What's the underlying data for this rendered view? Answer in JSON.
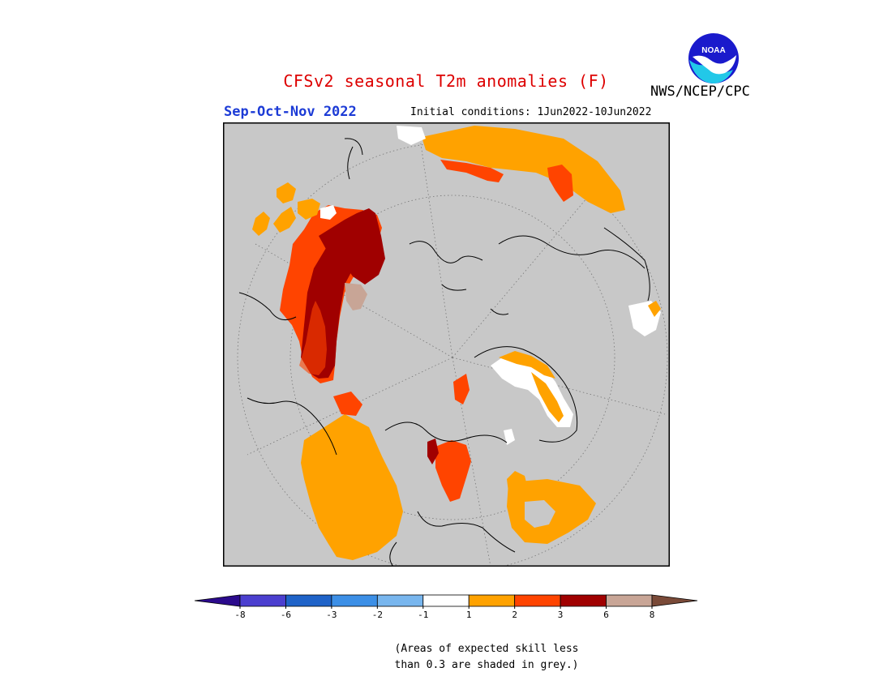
{
  "header": {
    "title": "CFSv2 seasonal T2m anomalies (F)",
    "agency": "NWS/NCEP/CPC",
    "season": "Sep-Oct-Nov 2022",
    "initial_conditions": "Initial conditions: 1Jun2022-10Jun2022"
  },
  "logo": {
    "icon": "noaa-logo-icon",
    "text": "NOAA"
  },
  "colors": {
    "grey_mask": "#c8c8c8",
    "frame": "#000000",
    "title_red": "#dd0000",
    "season_blue": "#1c3bd6"
  },
  "legend": {
    "bins": [
      {
        "color": "#2b0a8c",
        "shape": "arrow-left"
      },
      {
        "color": "#4b3fcf"
      },
      {
        "color": "#1f63c8"
      },
      {
        "color": "#3c8fe6"
      },
      {
        "color": "#78b6ee"
      },
      {
        "color": "#ffffff"
      },
      {
        "color": "#ffa200"
      },
      {
        "color": "#ff4400"
      },
      {
        "color": "#a00000"
      },
      {
        "color": "#c8a596"
      },
      {
        "color": "#7a4a38",
        "shape": "arrow-right"
      }
    ],
    "tick_labels": [
      "-8",
      "-6",
      "-3",
      "-2",
      "-1",
      "1",
      "2",
      "3",
      "6",
      "8"
    ]
  },
  "footnote": {
    "line1": "(Areas of expected skill less",
    "line2": "than 0.3 are shaded in grey.)"
  }
}
